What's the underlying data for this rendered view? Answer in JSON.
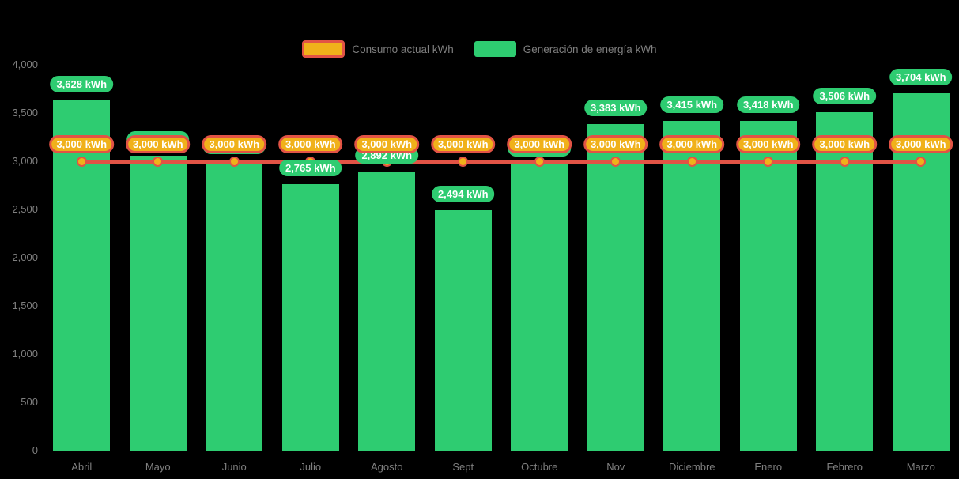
{
  "colors": {
    "background": "#000000",
    "generation_green": "#2ecc71",
    "consumption_red": "#e25345",
    "consumption_gold": "#f0b11a",
    "axis_text_gray": "#7f7f7f",
    "value_label_text": "#ffffff"
  },
  "legend": {
    "items": [
      {
        "label": "Consumo actual kWh"
      },
      {
        "label": "Generación de energía kWh"
      }
    ]
  },
  "chart_data": {
    "type": "bar",
    "title": "",
    "categories": [
      "Abril",
      "Mayo",
      "Junio",
      "Julio",
      "Agosto",
      "Sept",
      "Octubre",
      "Nov",
      "Diciembre",
      "Enero",
      "Febrero",
      "Marzo"
    ],
    "series": [
      {
        "name": "Consumo actual kWh",
        "type": "line",
        "color": "#e25345",
        "point_color": "#f0b11a",
        "values": [
          3000,
          3000,
          3000,
          3000,
          3000,
          3000,
          3000,
          3000,
          3000,
          3000,
          3000,
          3000
        ],
        "point_labels": [
          "3,000 kWh",
          "3,000 kWh",
          "3,000 kWh",
          "3,000 kWh",
          "3,000 kWh",
          "3,000 kWh",
          "3,000 kWh",
          "3,000 kWh",
          "3,000 kWh",
          "3,000 kWh",
          "3,000 kWh",
          "3,000 kWh"
        ]
      },
      {
        "name": "Generación de energía kWh",
        "type": "bar",
        "color": "#2ecc71",
        "values": [
          3628,
          3056,
          2990,
          2765,
          2892,
          2494,
          2965,
          3383,
          3415,
          3418,
          3506,
          3704
        ],
        "point_labels": [
          "3,628 kWh",
          "3,056 kWh",
          "2,990 kWh",
          "2,765 kWh",
          "2,892 kWh",
          "2,494 kWh",
          "2,965 kWh",
          "3,383 kWh",
          "3,415 kWh",
          "3,418 kWh",
          "3,506 kWh",
          "3,704 kWh"
        ]
      }
    ],
    "xlabel": "",
    "ylabel": "",
    "ylim": [
      0,
      4000
    ],
    "ytick_step": 500,
    "ytick_labels": [
      "0",
      "500",
      "1,000",
      "1,500",
      "2,000",
      "2,500",
      "3,000",
      "3,500",
      "4,000"
    ],
    "grid": false,
    "legend_position": "top-center"
  }
}
